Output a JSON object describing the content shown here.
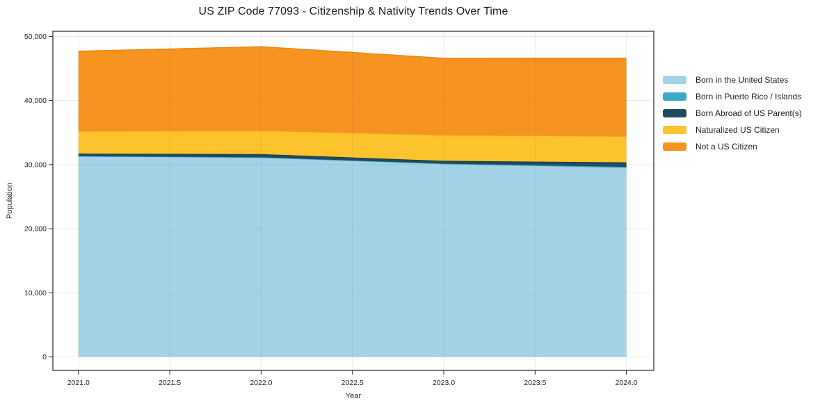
{
  "figure": {
    "background": "#ffffff",
    "text_color": "#262626",
    "spine_color": "#232323",
    "grid_color_overlay": "rgba(125,125,125,0.16)"
  },
  "chart_data": {
    "type": "area",
    "stacked": true,
    "title": "US ZIP Code 77093 - Citizenship & Nativity Trends Over Time",
    "xlabel": "Year",
    "ylabel": "Population",
    "x": [
      2021,
      2022,
      2023,
      2024
    ],
    "series": [
      {
        "name": "Born in the United States",
        "color": "#a4d2e6",
        "edge": "#8fc3dc",
        "values": [
          31300,
          31100,
          30100,
          29500
        ]
      },
      {
        "name": "Born in Puerto Rico / Islands",
        "color": "#3ea8c8",
        "edge": "#2e96b6",
        "values": [
          30,
          40,
          60,
          150
        ]
      },
      {
        "name": "Born Abroad of US Parent(s)",
        "color": "#1e4a5f",
        "edge": "#16394a",
        "values": [
          400,
          500,
          430,
          700
        ]
      },
      {
        "name": "Naturalized US Citizen",
        "color": "#fcc32d",
        "edge": "#edb31f",
        "values": [
          3450,
          3650,
          4000,
          4050
        ]
      },
      {
        "name": "Not a US Citizen",
        "color": "#f79421",
        "edge": "#ee8410",
        "values": [
          12500,
          13100,
          12000,
          12200
        ]
      }
    ],
    "totals": [
      47680,
      48390,
      46530,
      46600
    ],
    "xlim": [
      2020.86,
      2024.15
    ],
    "ylim": [
      -2100,
      50800
    ],
    "xticks": {
      "values": [
        2021,
        2021.5,
        2022,
        2022.5,
        2023,
        2023.5,
        2024
      ],
      "labels": [
        "2021.0",
        "2021.5",
        "2022.0",
        "2022.5",
        "2023.0",
        "2023.5",
        "2024.0"
      ]
    },
    "yticks": {
      "values": [
        0,
        10000,
        20000,
        30000,
        40000,
        50000
      ],
      "labels": [
        "0",
        "10,000",
        "20,000",
        "30,000",
        "40,000",
        "50,000"
      ]
    },
    "grid": true,
    "legend_position": "right"
  }
}
